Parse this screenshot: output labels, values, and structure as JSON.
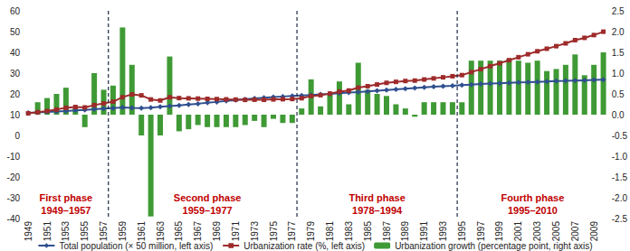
{
  "chart_data": {
    "type": "combo",
    "categories": [
      "1949",
      null,
      "1951",
      null,
      "1953",
      null,
      "1955",
      null,
      "1957",
      null,
      "1959",
      null,
      "1961",
      null,
      "1963",
      null,
      "1965",
      null,
      "1967",
      null,
      "1969",
      null,
      "1971",
      null,
      "1973",
      null,
      "1975",
      null,
      "1977",
      null,
      "1979",
      null,
      "1981",
      null,
      "1983",
      null,
      "1985",
      null,
      "1987",
      null,
      "1989",
      null,
      "1991",
      null,
      "1993",
      null,
      "1995",
      null,
      "1997",
      null,
      "1999",
      null,
      "2001",
      null,
      "2003",
      null,
      "2005",
      null,
      "2007",
      null,
      "2009",
      null
    ],
    "series": [
      {
        "name": "Total population (× 50 million, left axis)",
        "type": "line",
        "color": "#2f4f8f",
        "marker": "diamond",
        "line_style": "solid",
        "values": [
          10.83,
          11.04,
          11.26,
          11.49,
          11.76,
          12.05,
          12.33,
          12.57,
          12.93,
          13.19,
          13.44,
          13.24,
          13.17,
          13.41,
          13.83,
          14.09,
          14.5,
          14.91,
          15.27,
          15.71,
          16.14,
          16.59,
          17.04,
          17.44,
          17.84,
          18.18,
          18.49,
          18.75,
          18.99,
          19.26,
          19.51,
          19.74,
          20.02,
          20.33,
          20.6,
          20.82,
          21.17,
          21.51,
          21.86,
          22.21,
          22.54,
          22.87,
          23.16,
          23.43,
          23.7,
          23.96,
          24.23,
          24.48,
          24.73,
          24.96,
          25.16,
          25.35,
          25.51,
          25.65,
          25.81,
          25.94,
          26.15,
          26.26,
          26.42,
          26.56,
          26.7,
          26.82
        ]
      },
      {
        "name": "Urbanization rate (%, left axis)",
        "type": "line",
        "color": "#9e2b2b",
        "marker": "square",
        "line_style": "solid",
        "values": [
          10.64,
          11.18,
          11.78,
          12.46,
          13.31,
          13.69,
          13.48,
          14.62,
          15.39,
          16.25,
          18.41,
          19.75,
          19.29,
          17.33,
          16.84,
          18.37,
          17.98,
          17.86,
          17.74,
          17.62,
          17.5,
          17.38,
          17.26,
          17.13,
          17.2,
          17.16,
          17.34,
          17.44,
          17.55,
          17.92,
          18.96,
          19.39,
          20.16,
          21.13,
          21.62,
          23.01,
          23.71,
          24.52,
          25.32,
          25.81,
          26.21,
          26.41,
          26.94,
          27.46,
          27.99,
          28.51,
          29.04,
          30.48,
          31.91,
          33.35,
          34.78,
          36.22,
          37.66,
          39.09,
          40.53,
          41.76,
          42.99,
          44.34,
          45.89,
          46.99,
          48.34,
          49.95
        ]
      },
      {
        "name": "Urbanization growth (percentage point, right axis)",
        "type": "bar",
        "color": "#3f9a35",
        "axis": "y2",
        "values": [
          null,
          0.3,
          0.4,
          0.5,
          0.65,
          0.15,
          -0.3,
          1.0,
          0.6,
          0.7,
          2.1,
          1.2,
          -0.5,
          -2.45,
          -0.5,
          1.4,
          -0.4,
          -0.35,
          -0.25,
          -0.3,
          -0.3,
          -0.3,
          -0.3,
          -0.25,
          -0.15,
          -0.3,
          -0.1,
          -0.2,
          -0.2,
          0.15,
          0.85,
          0.2,
          0.5,
          0.8,
          0.25,
          1.25,
          0.6,
          0.5,
          0.45,
          0.25,
          0.15,
          -0.05,
          0.3,
          0.3,
          0.3,
          0.3,
          0.3,
          1.3,
          1.3,
          1.3,
          1.3,
          1.35,
          1.3,
          1.25,
          1.3,
          1.05,
          1.1,
          1.2,
          1.45,
          0.95,
          1.2,
          1.5
        ]
      }
    ],
    "ylim": [
      -40,
      60
    ],
    "yticks": [
      -40,
      -30,
      -20,
      -10,
      0,
      10,
      20,
      30,
      40,
      50,
      60
    ],
    "y2lim": [
      -2.5,
      2.5
    ],
    "y2ticks": [
      {
        "value": -2.5,
        "label": "-2.5"
      },
      {
        "value": -2,
        "label": "-2.0"
      },
      {
        "value": -1.5,
        "label": "-1.5"
      },
      {
        "value": -1,
        "label": "-1.0"
      },
      {
        "value": -0.5,
        "label": "-0.5"
      },
      {
        "value": 0,
        "label": "0.0"
      },
      {
        "value": 0.5,
        "label": "0.5"
      },
      {
        "value": 1,
        "label": "1.0"
      },
      {
        "value": 1.5,
        "label": "1.5"
      },
      {
        "value": 2,
        "label": "2.0"
      },
      {
        "value": 2.5,
        "label": "2.5"
      }
    ],
    "grid": false,
    "legend": "bottom",
    "annotations": [
      {
        "text": "First phase",
        "period": "1949–1957",
        "start": 1949,
        "end": 1957
      },
      {
        "text": "Second phase",
        "period": "1959–1977",
        "start": 1959,
        "end": 1977
      },
      {
        "text": "Third phase",
        "period": "1978–1994",
        "start": 1978,
        "end": 1994
      },
      {
        "text": "Fourth phase",
        "period": "1995–2010",
        "start": 1995,
        "end": 2010
      }
    ]
  }
}
